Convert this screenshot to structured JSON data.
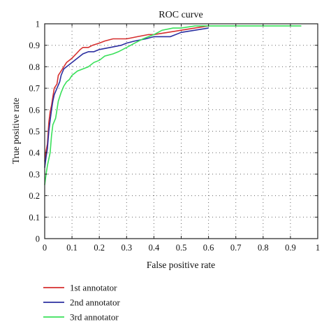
{
  "chart_data": {
    "type": "line",
    "title": "ROC curve",
    "xlabel": "False positive rate",
    "ylabel": "True positive rate",
    "xlim": [
      0,
      1
    ],
    "ylim": [
      0,
      1
    ],
    "grid": true,
    "grid_style": "dotted",
    "legend_position": "below",
    "x_ticks": [
      0,
      0.1,
      0.2,
      0.3,
      0.4,
      0.5,
      0.6,
      0.7,
      0.8,
      0.9,
      1
    ],
    "x_tick_labels": [
      "0",
      "0.1",
      "0.2",
      "0.3",
      "0.4",
      "0.5",
      "0.6",
      "0.7",
      "0.8",
      "0.9",
      "1"
    ],
    "y_ticks": [
      0,
      0.1,
      0.2,
      0.3,
      0.4,
      0.5,
      0.6,
      0.7,
      0.8,
      0.9,
      1
    ],
    "y_tick_labels": [
      "0",
      "0.1",
      "0.2",
      "0.3",
      "0.4",
      "0.5",
      "0.6",
      "0.7",
      "0.8",
      "0.9",
      "1"
    ],
    "series": [
      {
        "name": "1st annotator",
        "color": "#d62f2f",
        "points": [
          [
            0.0,
            0.36
          ],
          [
            0.005,
            0.41
          ],
          [
            0.01,
            0.44
          ],
          [
            0.015,
            0.54
          ],
          [
            0.02,
            0.59
          ],
          [
            0.025,
            0.62
          ],
          [
            0.03,
            0.66
          ],
          [
            0.035,
            0.7
          ],
          [
            0.045,
            0.72
          ],
          [
            0.05,
            0.76
          ],
          [
            0.06,
            0.78
          ],
          [
            0.07,
            0.8
          ],
          [
            0.08,
            0.82
          ],
          [
            0.09,
            0.83
          ],
          [
            0.1,
            0.84
          ],
          [
            0.115,
            0.86
          ],
          [
            0.13,
            0.88
          ],
          [
            0.14,
            0.89
          ],
          [
            0.16,
            0.89
          ],
          [
            0.175,
            0.9
          ],
          [
            0.2,
            0.91
          ],
          [
            0.22,
            0.92
          ],
          [
            0.25,
            0.93
          ],
          [
            0.3,
            0.93
          ],
          [
            0.34,
            0.94
          ],
          [
            0.38,
            0.95
          ],
          [
            0.4,
            0.95
          ],
          [
            0.45,
            0.96
          ],
          [
            0.5,
            0.97
          ],
          [
            0.55,
            0.98
          ],
          [
            0.6,
            0.99
          ]
        ]
      },
      {
        "name": "2nd annotator",
        "color": "#2b2fa0",
        "points": [
          [
            0.0,
            0.33
          ],
          [
            0.005,
            0.38
          ],
          [
            0.01,
            0.42
          ],
          [
            0.015,
            0.5
          ],
          [
            0.02,
            0.55
          ],
          [
            0.025,
            0.6
          ],
          [
            0.03,
            0.64
          ],
          [
            0.035,
            0.67
          ],
          [
            0.045,
            0.7
          ],
          [
            0.055,
            0.73
          ],
          [
            0.06,
            0.76
          ],
          [
            0.07,
            0.79
          ],
          [
            0.08,
            0.8
          ],
          [
            0.1,
            0.82
          ],
          [
            0.12,
            0.84
          ],
          [
            0.14,
            0.86
          ],
          [
            0.16,
            0.87
          ],
          [
            0.18,
            0.87
          ],
          [
            0.2,
            0.88
          ],
          [
            0.24,
            0.89
          ],
          [
            0.28,
            0.9
          ],
          [
            0.3,
            0.91
          ],
          [
            0.33,
            0.92
          ],
          [
            0.37,
            0.93
          ],
          [
            0.4,
            0.94
          ],
          [
            0.46,
            0.94
          ],
          [
            0.5,
            0.96
          ],
          [
            0.55,
            0.97
          ],
          [
            0.6,
            0.98
          ]
        ]
      },
      {
        "name": "3rd annotator",
        "color": "#39e05a",
        "points": [
          [
            0.0,
            0.25
          ],
          [
            0.005,
            0.3
          ],
          [
            0.01,
            0.34
          ],
          [
            0.02,
            0.4
          ],
          [
            0.025,
            0.48
          ],
          [
            0.03,
            0.53
          ],
          [
            0.04,
            0.56
          ],
          [
            0.045,
            0.6
          ],
          [
            0.05,
            0.64
          ],
          [
            0.06,
            0.68
          ],
          [
            0.07,
            0.71
          ],
          [
            0.08,
            0.73
          ],
          [
            0.09,
            0.74
          ],
          [
            0.1,
            0.76
          ],
          [
            0.12,
            0.78
          ],
          [
            0.14,
            0.79
          ],
          [
            0.16,
            0.8
          ],
          [
            0.18,
            0.82
          ],
          [
            0.2,
            0.83
          ],
          [
            0.22,
            0.85
          ],
          [
            0.25,
            0.86
          ],
          [
            0.27,
            0.87
          ],
          [
            0.3,
            0.89
          ],
          [
            0.33,
            0.91
          ],
          [
            0.36,
            0.93
          ],
          [
            0.4,
            0.95
          ],
          [
            0.43,
            0.97
          ],
          [
            0.47,
            0.98
          ],
          [
            0.5,
            0.98
          ],
          [
            0.55,
            0.99
          ],
          [
            0.6,
            0.99
          ],
          [
            0.7,
            0.99
          ],
          [
            0.8,
            0.99
          ],
          [
            0.9,
            0.99
          ],
          [
            0.94,
            0.99
          ]
        ]
      }
    ]
  }
}
